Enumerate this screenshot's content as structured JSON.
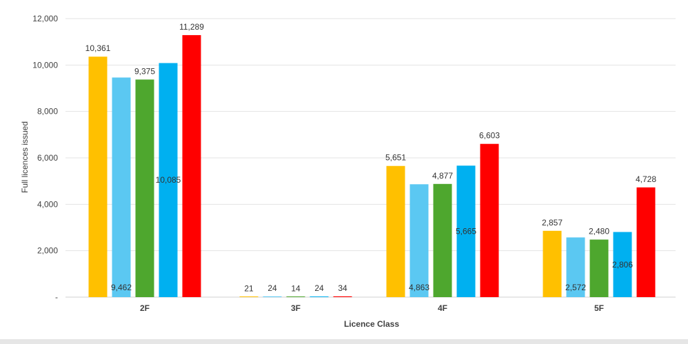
{
  "chart_data": {
    "type": "bar",
    "categories": [
      "2F",
      "3F",
      "4F",
      "5F"
    ],
    "xlabel": "Licence Class",
    "ylabel": "Full licences issued",
    "ylim": [
      0,
      12000
    ],
    "yticks": [
      "-",
      "2,000",
      "4,000",
      "6,000",
      "8,000",
      "10,000",
      "12,000"
    ],
    "grid": true,
    "legend": "none",
    "series": [
      {
        "color": "#FFC000",
        "values": [
          10361,
          21,
          5651,
          2857
        ],
        "labels": [
          "10,361",
          "21",
          "5,651",
          "2,857"
        ],
        "label_pos": "above"
      },
      {
        "color": "#5BC8F2",
        "values": [
          9462,
          24,
          4863,
          2572
        ],
        "labels": [
          "9,462",
          "24",
          "4,863",
          "2,572"
        ],
        "label_pos": "bottom"
      },
      {
        "color": "#4EA72E",
        "values": [
          9375,
          14,
          4877,
          2480
        ],
        "labels": [
          "9,375",
          "14",
          "4,877",
          "2,480"
        ],
        "label_pos": "above"
      },
      {
        "color": "#00B0F0",
        "values": [
          10085,
          24,
          5665,
          2806
        ],
        "labels": [
          "10,085",
          "24",
          "5,665",
          "2,806"
        ],
        "label_pos": "middle"
      },
      {
        "color": "#FF0000",
        "values": [
          11289,
          34,
          6603,
          4728
        ],
        "labels": [
          "11,289",
          "34",
          "6,603",
          "4,728"
        ],
        "label_pos": "above"
      }
    ]
  }
}
